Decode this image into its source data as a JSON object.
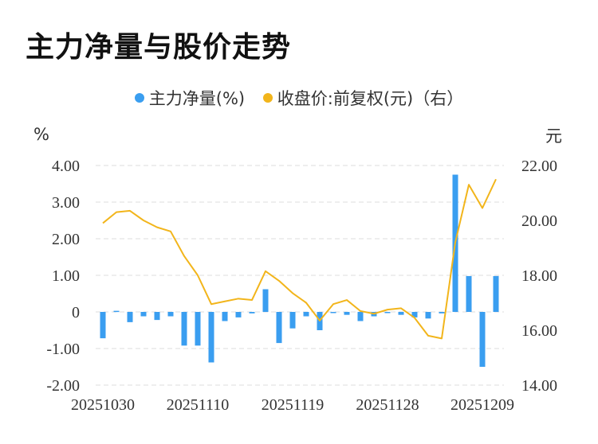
{
  "title": "主力净量与股价走势",
  "legend": {
    "series1": "主力净量(%)",
    "series2": "收盘价:前复权(元)（右）"
  },
  "colors": {
    "bar": "#3a9ef0",
    "line": "#f2b51b",
    "grid": "#dddddd"
  },
  "chart_data": {
    "type": "bar+line",
    "title": "主力净量与股价走势",
    "y_left_unit": "%",
    "y_right_unit": "元",
    "y_left_ticks": [
      "4.00",
      "3.00",
      "2.00",
      "1.00",
      "0",
      "-1.00",
      "-2.00"
    ],
    "y_right_ticks": [
      "22.00",
      "20.00",
      "18.00",
      "16.00",
      "14.00"
    ],
    "x_tick_labels": [
      "20251030",
      "20251110",
      "20251119",
      "20251128",
      "20251209"
    ],
    "ylim_left": [
      -2,
      4
    ],
    "ylim_right": [
      14,
      22
    ],
    "grid": true,
    "legend_position": "top",
    "categories": [
      "20251030",
      "20251031",
      "20251103",
      "20251104",
      "20251105",
      "20251106",
      "20251107",
      "20251110",
      "20251111",
      "20251112",
      "20251113",
      "20251114",
      "20251117",
      "20251118",
      "20251119",
      "20251120",
      "20251121",
      "20251124",
      "20251125",
      "20251126",
      "20251127",
      "20251128",
      "20251201",
      "20251202",
      "20251203",
      "20251204",
      "20251205",
      "20251208",
      "20251209",
      "20251210"
    ],
    "series": [
      {
        "name": "主力净量(%)",
        "type": "bar",
        "axis": "left",
        "values": [
          -0.72,
          0.03,
          -0.28,
          -0.12,
          -0.22,
          -0.12,
          -0.92,
          -0.92,
          -1.38,
          -0.25,
          -0.15,
          -0.04,
          0.62,
          -0.85,
          -0.45,
          -0.12,
          -0.5,
          -0.02,
          -0.08,
          -0.25,
          -0.12,
          -0.02,
          -0.08,
          -0.15,
          -0.18,
          -0.04,
          3.75,
          0.98,
          -1.5,
          0.98
        ]
      },
      {
        "name": "收盘价:前复权(元)（右）",
        "type": "line",
        "axis": "right",
        "values": [
          19.9,
          20.3,
          20.35,
          20.0,
          19.75,
          19.6,
          18.7,
          18.0,
          16.95,
          17.05,
          17.15,
          17.1,
          18.15,
          17.8,
          17.35,
          17.0,
          16.35,
          16.95,
          17.1,
          16.7,
          16.6,
          16.75,
          16.8,
          16.45,
          15.8,
          15.7,
          19.2,
          21.3,
          20.45,
          21.5
        ]
      }
    ]
  }
}
